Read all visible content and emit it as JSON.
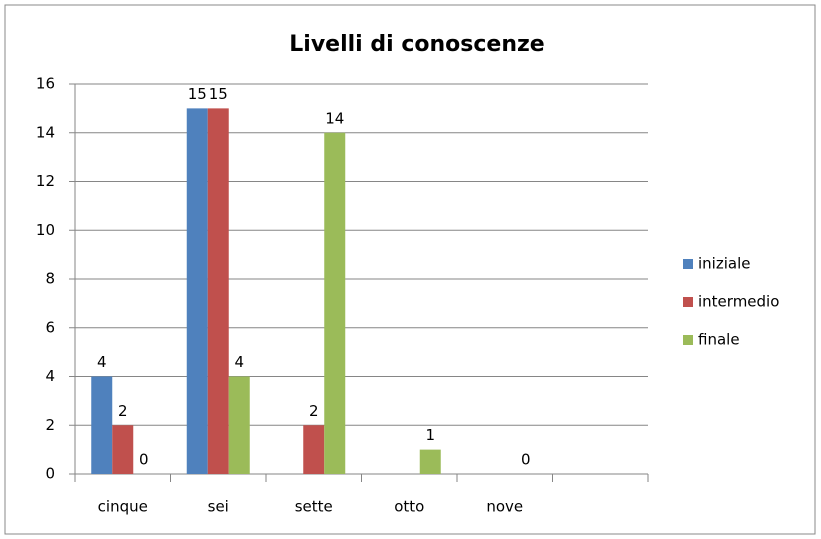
{
  "chart_data": {
    "type": "bar",
    "title": "Livelli di conoscenze",
    "categories": [
      "cinque",
      "sei",
      "sette",
      "otto",
      "nove",
      null
    ],
    "series": [
      {
        "name": "iniziale",
        "color": "#4f81bd",
        "values": [
          4,
          15,
          null,
          null,
          null,
          null
        ]
      },
      {
        "name": "intermedio",
        "color": "#c0504d",
        "values": [
          2,
          15,
          2,
          null,
          null,
          null
        ]
      },
      {
        "name": "finale",
        "color": "#9bbb59",
        "values": [
          0,
          4,
          14,
          1,
          0,
          null
        ]
      }
    ],
    "ylim": [
      0,
      16
    ],
    "yticks": [
      0,
      2,
      4,
      6,
      8,
      10,
      12,
      14,
      16
    ],
    "grid": true,
    "legend": "right"
  }
}
